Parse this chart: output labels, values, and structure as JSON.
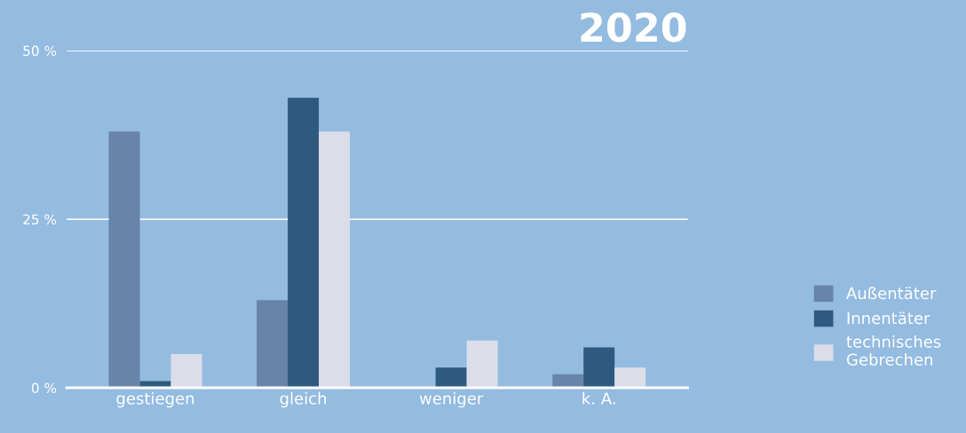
{
  "chart_data": {
    "type": "bar",
    "title": "2020",
    "categories": [
      "gestiegen",
      "gleich",
      "weniger",
      "k. A."
    ],
    "series": [
      {
        "name": "Außentäter",
        "color": "#6884a8",
        "values": [
          38,
          13,
          0,
          2
        ]
      },
      {
        "name": "Innentäter",
        "color": "#2d5a7e",
        "values": [
          1,
          43,
          3,
          6
        ]
      },
      {
        "name": "technisches\nGebrechen",
        "color": "#dcdde8",
        "values": [
          5,
          38,
          7,
          3
        ]
      }
    ],
    "ylim": [
      0,
      50
    ],
    "yticks": [
      {
        "value": 0,
        "label": "0 %"
      },
      {
        "value": 25,
        "label": "25 %"
      },
      {
        "value": 50,
        "label": "50 %"
      }
    ],
    "grid": "y",
    "legend": "right"
  }
}
